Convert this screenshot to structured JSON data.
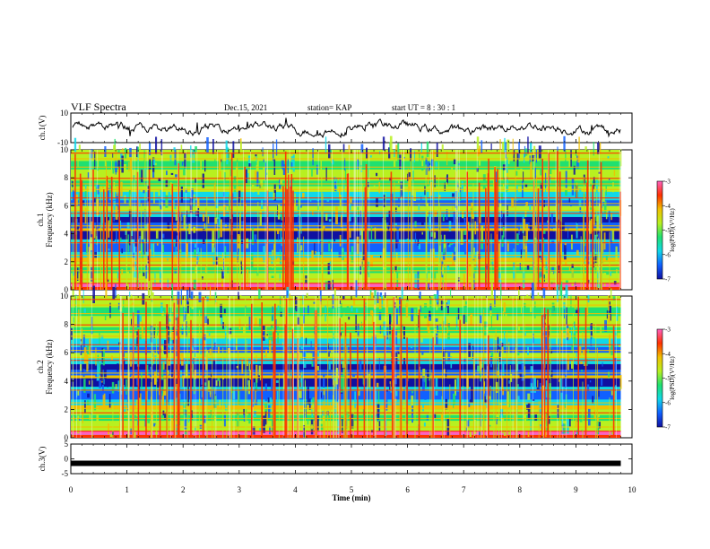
{
  "header": {
    "title": "VLF Spectra",
    "date": "Dec.15, 2021",
    "station": "station= KAP",
    "start": "start  UT =   8  : 30 : 1"
  },
  "chart_data": {
    "type": "heatmap",
    "xlabel": "Time  (min)",
    "xlim": [
      0,
      10
    ],
    "xticks": [
      "0",
      "1",
      "2",
      "3",
      "4",
      "5",
      "6",
      "7",
      "8",
      "9",
      "10"
    ],
    "panels": [
      {
        "name": "waveform-ch1",
        "ylabel": "ch.1(V)",
        "ylim": [
          -10,
          10
        ],
        "yticks": [
          "10",
          "-10"
        ]
      },
      {
        "name": "spectrogram-ch1",
        "ylabel": "Frequency  (kHz)",
        "ychannel": "ch.1",
        "ylim": [
          0,
          10
        ],
        "yticks": [
          "0",
          "2",
          "4",
          "6",
          "8",
          "10"
        ],
        "colorbar": {
          "label": "log(PSD)(V²/Hz)",
          "range": [
            -7,
            -3
          ],
          "ticks": [
            "-3",
            "-4",
            "-5",
            "-6",
            "-7"
          ]
        }
      },
      {
        "name": "spectrogram-ch2",
        "ylabel": "Frequency  (kHz)",
        "ychannel": "ch.2",
        "ylim": [
          0,
          10
        ],
        "yticks": [
          "0",
          "2",
          "4",
          "6",
          "8",
          "10"
        ],
        "colorbar": {
          "label": "log(PSD)(V²/Hz)",
          "range": [
            -7,
            -3
          ],
          "ticks": [
            "-3",
            "-4",
            "-5",
            "-6",
            "-7"
          ]
        }
      },
      {
        "name": "waveform-ch3",
        "ylabel": "ch.3(V)",
        "ylim": [
          -5,
          5
        ],
        "yticks": [
          "5",
          "0",
          "-5"
        ]
      }
    ],
    "data_end_min": 9.8,
    "ch3_level_V": -1.5
  },
  "colors": {
    "scale": [
      "#1010a0",
      "#1060ff",
      "#10d8e8",
      "#20e070",
      "#b8f020",
      "#f0c000",
      "#ff3000",
      "#ff60c0",
      "#ffffff"
    ]
  }
}
